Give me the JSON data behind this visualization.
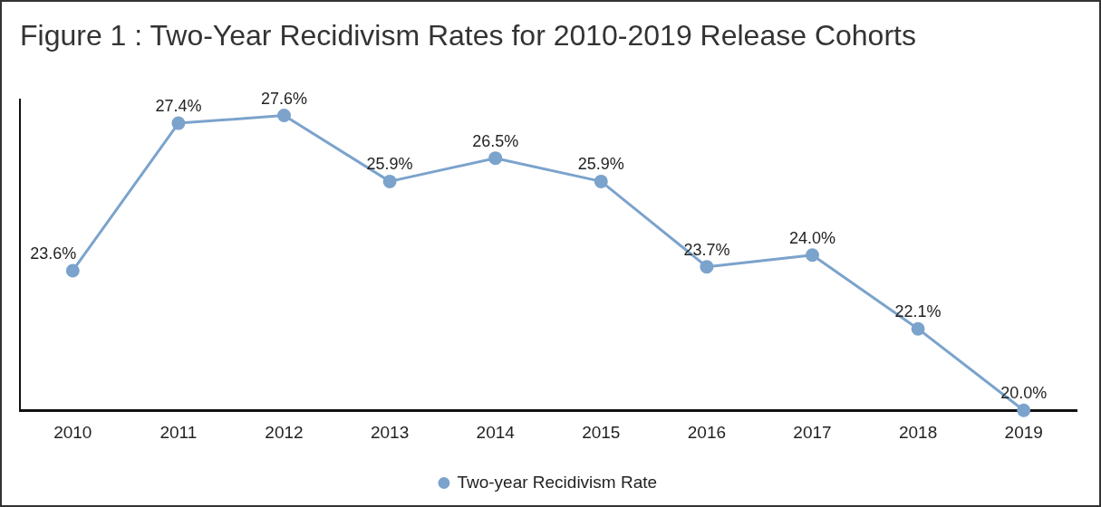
{
  "chart_data": {
    "type": "line",
    "title": "Figure 1 : Two-Year Recidivism Rates for 2010-2019 Release Cohorts",
    "categories": [
      "2010",
      "2011",
      "2012",
      "2013",
      "2014",
      "2015",
      "2016",
      "2017",
      "2018",
      "2019"
    ],
    "series": [
      {
        "name": "Two-year Recidivism Rate",
        "color": "#7ba3cc",
        "values": [
          23.6,
          27.4,
          27.6,
          25.9,
          26.5,
          25.9,
          23.7,
          24.0,
          22.1,
          20.0
        ],
        "value_labels": [
          "23.6%",
          "27.4%",
          "27.6%",
          "25.9%",
          "26.5%",
          "25.9%",
          "23.7%",
          "24.0%",
          "22.1%",
          "20.0%"
        ]
      }
    ],
    "grid": false,
    "legend": "bottom",
    "marker": "circle",
    "line_style": "solid",
    "tick_labels": "x"
  }
}
